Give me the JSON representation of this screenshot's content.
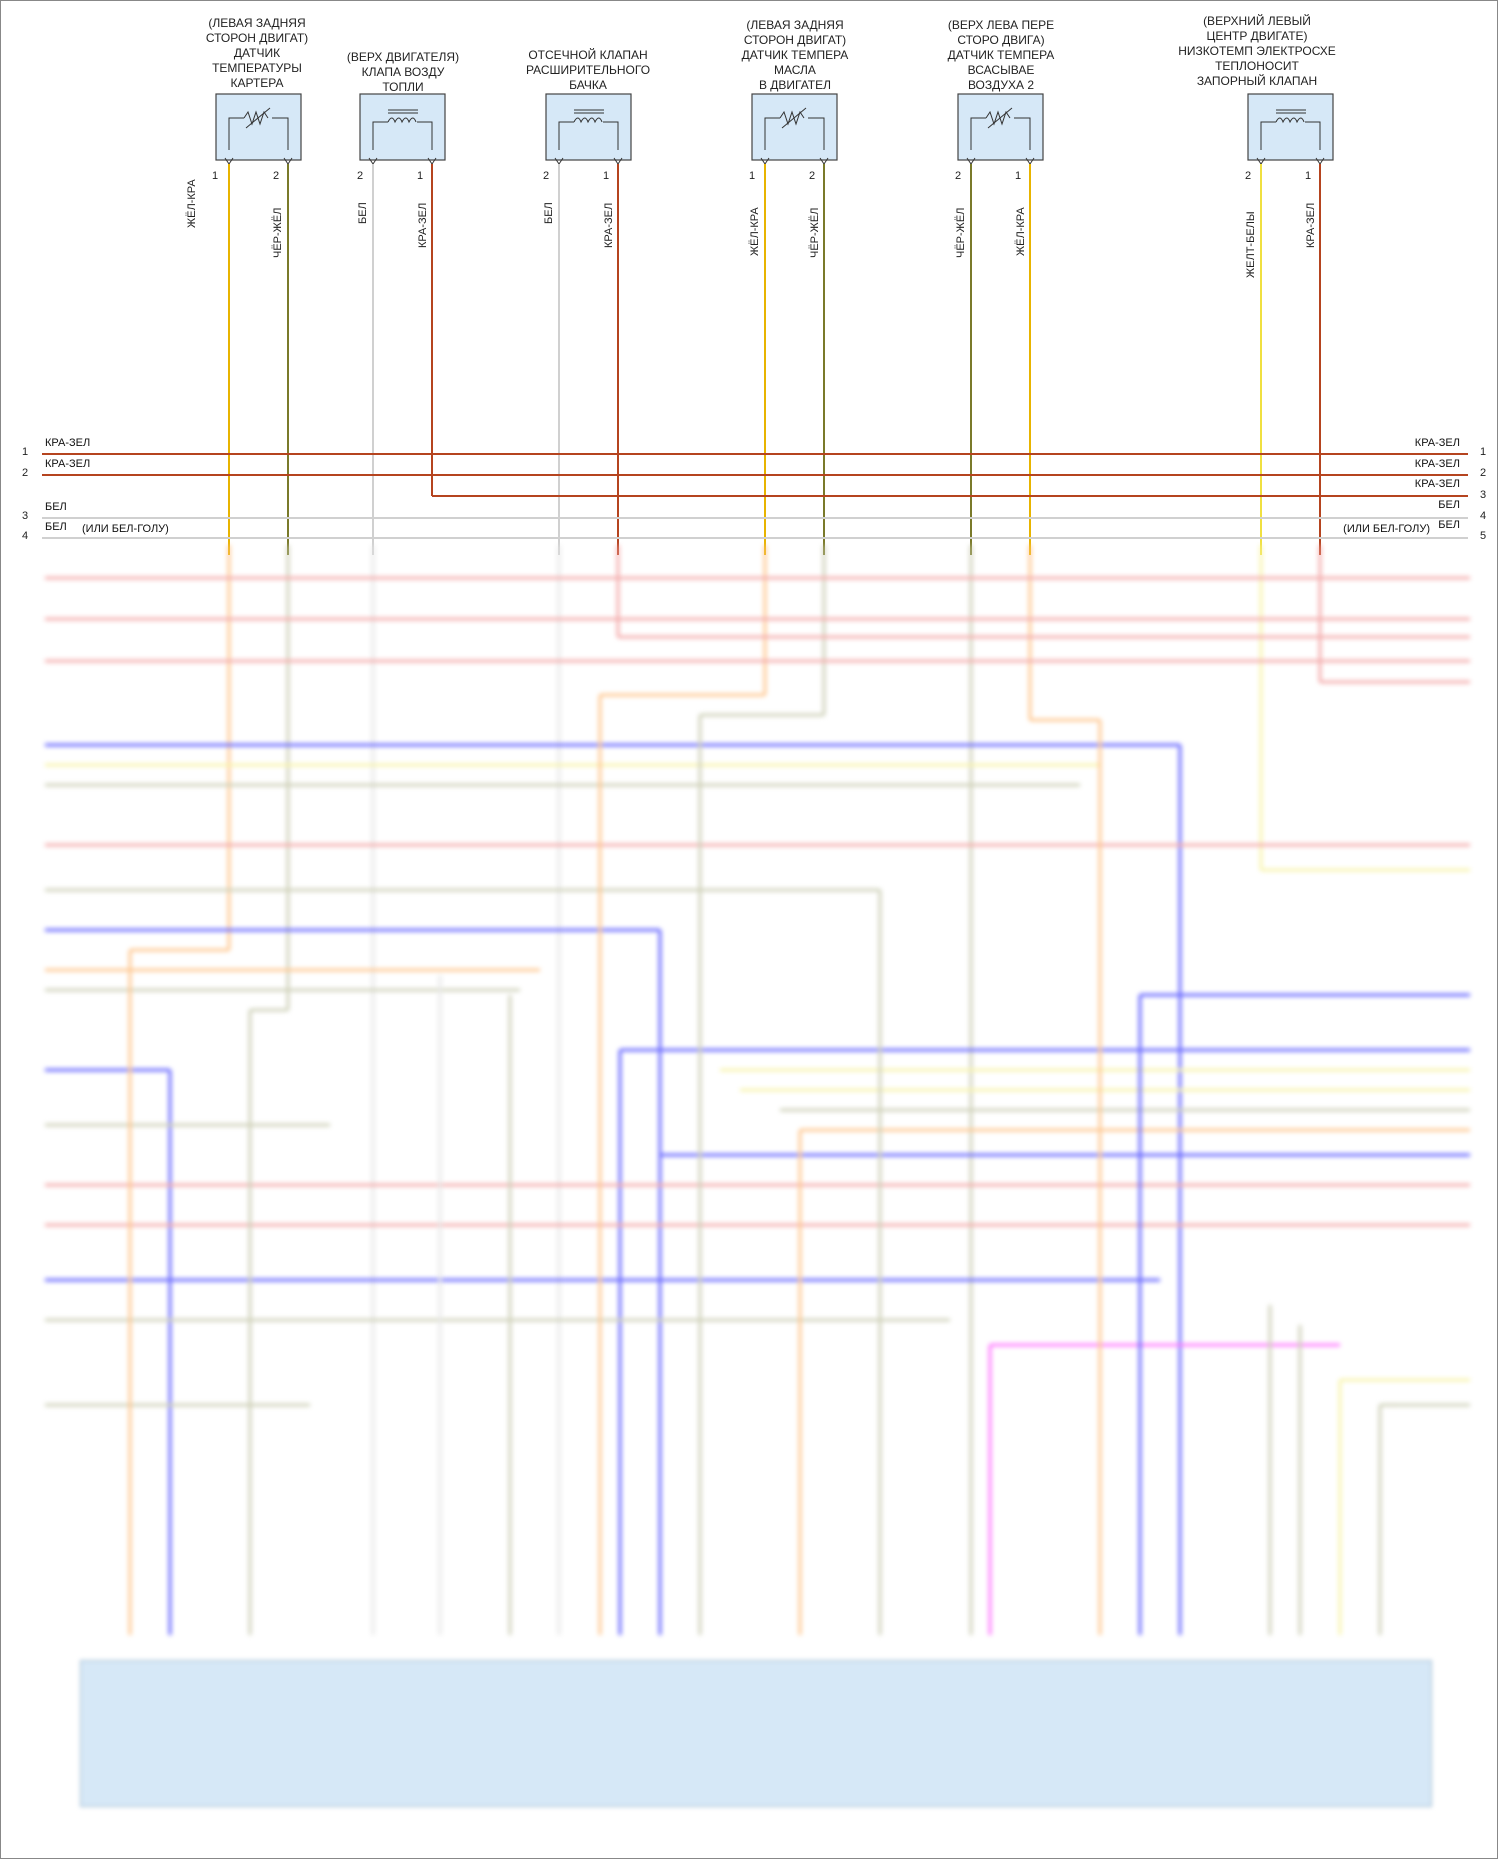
{
  "components": [
    {
      "id": "c1",
      "label": "(ЛЕВАЯ ЗАДНЯЯ\nСТОРОН ДВИГАТ)\nДАТЧИК\nТЕМПЕРАТУРЫ\nКАРТЕРА",
      "type": "sensor",
      "pins": [
        "1",
        "2"
      ],
      "wires": [
        "ЖЁЛ-КРА",
        "ЧЁР-ЖЁЛ"
      ]
    },
    {
      "id": "c2",
      "label": "(ВЕРХ ДВИГАТЕЛЯ)\nКЛАПА ВОЗДУ\nТОПЛИ",
      "type": "valve",
      "pins": [
        "2",
        "1"
      ],
      "wires": [
        "БЕЛ",
        "КРА-ЗЕЛ"
      ]
    },
    {
      "id": "c3",
      "label": "ОТСЕЧНОЙ КЛАПАН\nРАСШИРИТЕЛЬНОГО\nБАЧКА",
      "type": "valve",
      "pins": [
        "2",
        "1"
      ],
      "wires": [
        "БЕЛ",
        "КРА-ЗЕЛ"
      ]
    },
    {
      "id": "c4",
      "label": "(ЛЕВАЯ ЗАДНЯЯ\nСТОРОН ДВИГАТ)\nДАТЧИК ТЕМПЕРА\nМАСЛА\nВ ДВИГАТЕЛ",
      "type": "sensor",
      "pins": [
        "1",
        "2"
      ],
      "wires": [
        "ЖЁЛ-КРА",
        "ЧЁР-ЖЁЛ"
      ]
    },
    {
      "id": "c5",
      "label": "(ВЕРХ ЛЕВА ПЕРЕ\nСТОРО ДВИГА)\nДАТЧИК ТЕМПЕРА\nВСАСЫВАЕ\nВОЗДУХА 2",
      "type": "sensor",
      "pins": [
        "2",
        "1"
      ],
      "wires": [
        "ЧЁР-ЖЁЛ",
        "ЖЁЛ-КРА"
      ]
    },
    {
      "id": "c6",
      "label": "(ВЕРХНИЙ ЛЕВЫЙ\nЦЕНТР ДВИГАТЕ)\nНИЗКОТЕМП ЭЛЕКТРОСХЕ\nТЕПЛОНОСИТ\nЗАПОРНЫЙ КЛАПАН",
      "type": "valve",
      "pins": [
        "2",
        "1"
      ],
      "wires": [
        "ЖЕЛТ-БЕЛЫ",
        "КРА-ЗЕЛ"
      ]
    }
  ],
  "bus_left": [
    {
      "num": "1",
      "label": "КРА-ЗЕЛ",
      "extra": ""
    },
    {
      "num": "2",
      "label": "КРА-ЗЕЛ",
      "extra": ""
    },
    {
      "num": "3",
      "label": "БЕЛ",
      "extra": ""
    },
    {
      "num": "4",
      "label": "БЕЛ",
      "extra": "(ИЛИ БЕЛ-ГОЛУ)"
    }
  ],
  "bus_right": [
    {
      "num": "1",
      "label": "КРА-ЗЕЛ",
      "extra": ""
    },
    {
      "num": "2",
      "label": "КРА-ЗЕЛ",
      "extra": ""
    },
    {
      "num": "3",
      "label": "КРА-ЗЕЛ",
      "extra": ""
    },
    {
      "num": "4",
      "label": "БЕЛ",
      "extra": ""
    },
    {
      "num": "5",
      "label": "БЕЛ",
      "extra": "(ИЛИ БЕЛ-ГОЛУ)"
    }
  ],
  "colors": {
    "red_green": "#b5441f",
    "white": "#d0d0d0",
    "yellow_red": "#e8b400",
    "black_yellow": "#7a7a2a",
    "yellow_white": "#f0e040",
    "blue": "#5050ff",
    "pink": "#ff66ff",
    "sensor_fill": "#d6e8f7",
    "light_red": "#f3a0a0",
    "orange": "#ffc080",
    "light_yellow": "#f7f2a0",
    "grey_green": "#c8cbb0"
  }
}
